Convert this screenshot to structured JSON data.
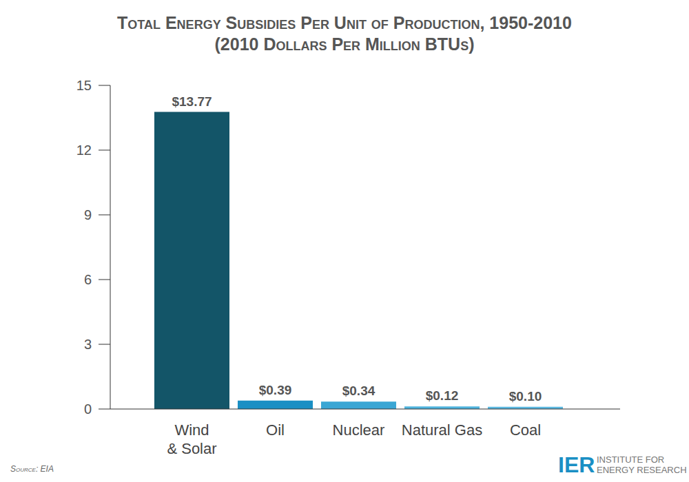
{
  "chart_data": {
    "type": "bar",
    "title": "Total Energy Subsidies Per Unit of Production, 1950-2010",
    "subtitle": "(2010 Dollars Per Million BTUs)",
    "categories": [
      "Wind & Solar",
      "Oil",
      "Nuclear",
      "Natural Gas",
      "Coal"
    ],
    "values": [
      13.77,
      0.39,
      0.34,
      0.12,
      0.1
    ],
    "value_labels": [
      "$13.77",
      "$0.39",
      "$0.34",
      "$0.12",
      "$0.10"
    ],
    "colors": [
      "#135568",
      "#1a8fc4",
      "#3aa6d4",
      "#4fb3dd",
      "#5bb8e0"
    ],
    "ylim": [
      0,
      15
    ],
    "yticks": [
      0,
      3,
      6,
      9,
      12,
      15
    ],
    "grid": false,
    "data_labels": true,
    "annotations": [
      "Source: EIA",
      "IER",
      "INSTITUTE FOR ENERGY RESEARCH"
    ]
  }
}
